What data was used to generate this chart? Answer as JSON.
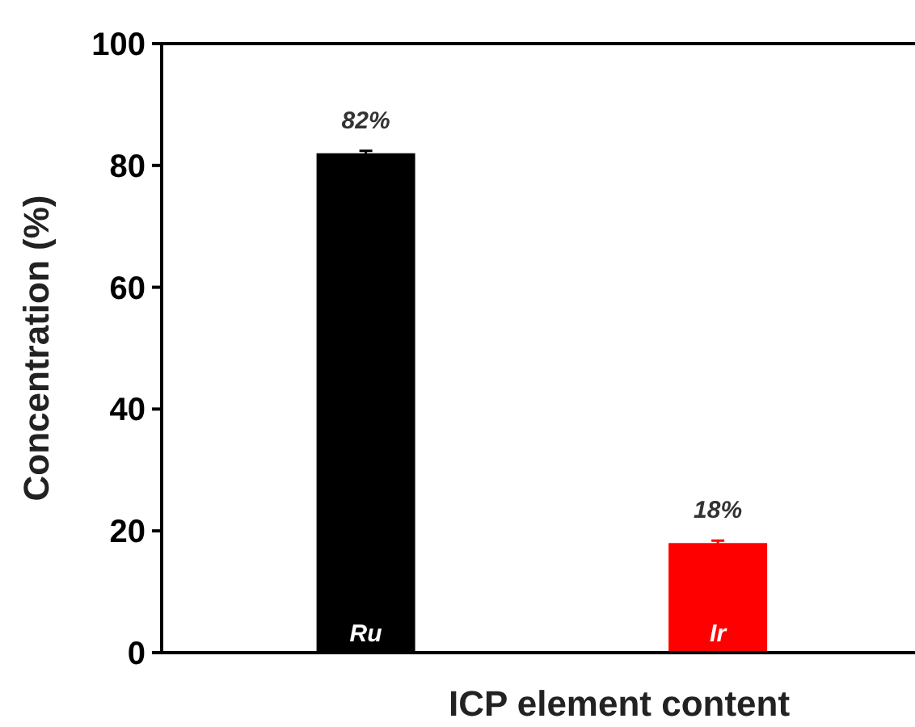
{
  "chart_data": {
    "type": "bar",
    "xlabel": "ICP element content",
    "ylabel": "Concentration (%)",
    "categories": [
      "Ru",
      "Ir"
    ],
    "values": [
      82,
      18
    ],
    "colors": [
      "#000000",
      "#ff0000"
    ],
    "errors": [
      0.4,
      0.4
    ],
    "value_labels": [
      "82%",
      "18%"
    ],
    "ylim": [
      0,
      100
    ],
    "yticks": [
      0,
      20,
      40,
      60,
      80,
      100
    ],
    "grid": false
  }
}
